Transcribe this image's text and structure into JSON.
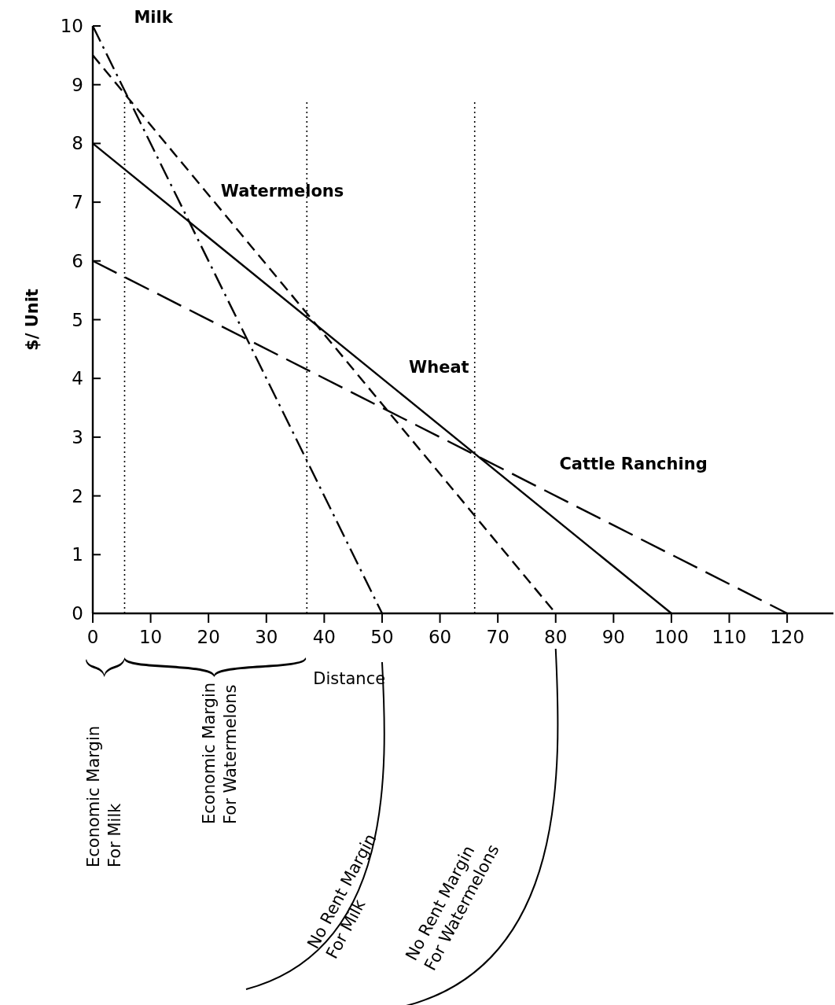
{
  "chart_data": {
    "type": "line",
    "xlabel": "Distance",
    "ylabel": "$/ Unit",
    "xlim": [
      0,
      128
    ],
    "ylim": [
      0,
      10
    ],
    "xticks": [
      0,
      10,
      20,
      30,
      40,
      50,
      60,
      70,
      80,
      90,
      100,
      110,
      120
    ],
    "yticks": [
      0,
      1,
      2,
      3,
      4,
      5,
      6,
      7,
      8,
      9,
      10
    ],
    "grid": false,
    "marker": "none",
    "series": [
      {
        "name": "Milk",
        "color": "#000000",
        "x": [
          0,
          50
        ],
        "values": [
          10,
          0
        ],
        "line_style": "dashdot"
      },
      {
        "name": "Watermelons",
        "color": "#000000",
        "x": [
          0,
          80
        ],
        "values": [
          9.5,
          0
        ],
        "line_style": "dashed"
      },
      {
        "name": "Wheat",
        "color": "#000000",
        "x": [
          0,
          100
        ],
        "values": [
          8,
          0
        ],
        "line_style": "solid"
      },
      {
        "name": "Cattle Ranching",
        "color": "#000000",
        "x": [
          0,
          120
        ],
        "values": [
          6,
          0
        ],
        "line_style": "longdash"
      }
    ],
    "ref_lines": [
      {
        "axis": "x",
        "value": 5.5,
        "color": "#000000",
        "line_style": "dotted"
      },
      {
        "axis": "x",
        "value": 37,
        "color": "#000000",
        "line_style": "dotted"
      },
      {
        "axis": "x",
        "value": 66,
        "color": "#000000",
        "line_style": "dotted"
      }
    ],
    "annotations": [
      "Economic Margin For Milk",
      "Economic Margin For Watermelons",
      "No Rent Margin For Milk",
      "No Rent Margin For Watermelons"
    ]
  }
}
